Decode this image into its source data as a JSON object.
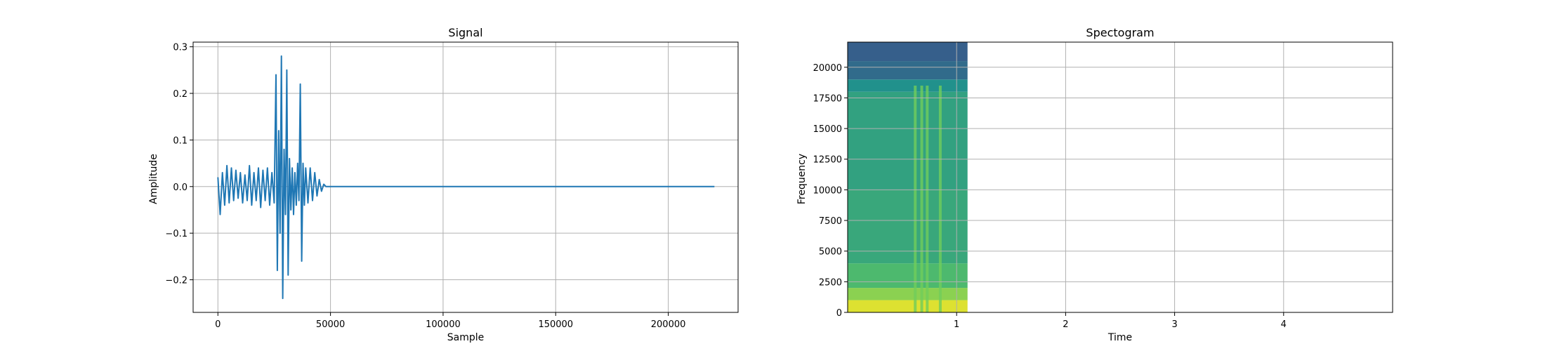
{
  "chart_data": [
    {
      "type": "line",
      "title": "Signal",
      "xlabel": "Sample",
      "ylabel": "Amplitude",
      "xlim": [
        -11000,
        231000
      ],
      "ylim": [
        -0.27,
        0.31
      ],
      "xticks": [
        0,
        50000,
        100000,
        150000,
        200000
      ],
      "xtick_labels": [
        "0",
        "50000",
        "100000",
        "150000",
        "200000"
      ],
      "yticks": [
        -0.2,
        -0.1,
        0.0,
        0.1,
        0.2,
        0.3
      ],
      "ytick_labels": [
        "−0.2",
        "−0.1",
        "0.0",
        "0.1",
        "0.2",
        "0.3"
      ],
      "grid": true,
      "series": [
        {
          "color": "#1f77b4",
          "x": [
            0,
            1000,
            2000,
            3000,
            4000,
            5000,
            6000,
            7000,
            8000,
            9000,
            10000,
            11000,
            12000,
            13000,
            14000,
            15000,
            16000,
            17000,
            18000,
            19000,
            20000,
            21000,
            22000,
            23000,
            24000,
            25000,
            25800,
            26400,
            27000,
            27600,
            28200,
            28800,
            29400,
            30000,
            30600,
            31200,
            31800,
            32400,
            33000,
            33600,
            34200,
            34800,
            35400,
            36000,
            36600,
            37200,
            37800,
            38400,
            39000,
            40000,
            41000,
            42000,
            43000,
            44000,
            45000,
            46000,
            47000,
            48000,
            100000,
            150000,
            220500
          ],
          "y": [
            0.02,
            -0.06,
            0.03,
            -0.04,
            0.045,
            -0.035,
            0.04,
            -0.03,
            0.035,
            -0.025,
            0.03,
            -0.035,
            0.025,
            -0.03,
            0.045,
            -0.04,
            0.03,
            -0.03,
            0.04,
            -0.045,
            0.035,
            -0.03,
            0.04,
            -0.04,
            0.03,
            -0.035,
            0.24,
            -0.18,
            0.12,
            -0.1,
            0.28,
            -0.24,
            0.08,
            -0.06,
            0.25,
            -0.19,
            0.06,
            -0.05,
            0.04,
            -0.06,
            0.03,
            -0.04,
            0.05,
            -0.03,
            0.22,
            -0.16,
            0.05,
            -0.04,
            0.04,
            -0.035,
            0.04,
            -0.03,
            0.03,
            -0.02,
            0.015,
            -0.01,
            0.005,
            0.0,
            0.0,
            0.0,
            0.0
          ]
        }
      ]
    },
    {
      "type": "heatmap",
      "title": "Spectogram",
      "xlabel": "Time",
      "ylabel": "Frequency",
      "xlim": [
        0,
        5.0
      ],
      "ylim": [
        0,
        22050
      ],
      "xticks": [
        1,
        2,
        3,
        4
      ],
      "xtick_labels": [
        "1",
        "2",
        "3",
        "4"
      ],
      "yticks": [
        0,
        2500,
        5000,
        7500,
        10000,
        12500,
        15000,
        17500,
        20000
      ],
      "ytick_labels": [
        "0",
        "2500",
        "5000",
        "7500",
        "10000",
        "12500",
        "15000",
        "17500",
        "20000"
      ],
      "grid": true,
      "data_extent": {
        "time": [
          0,
          1.1
        ],
        "frequency": [
          0,
          22050
        ]
      },
      "colormap": "viridis",
      "frequency_bands": [
        {
          "from": 0,
          "to": 1000,
          "level": 0.95
        },
        {
          "from": 1000,
          "to": 2000,
          "level": 0.82
        },
        {
          "from": 2000,
          "to": 4000,
          "level": 0.68
        },
        {
          "from": 4000,
          "to": 10000,
          "level": 0.6
        },
        {
          "from": 10000,
          "to": 18000,
          "level": 0.57
        },
        {
          "from": 18000,
          "to": 19000,
          "level": 0.5
        },
        {
          "from": 19000,
          "to": 20500,
          "level": 0.35
        },
        {
          "from": 20500,
          "to": 22050,
          "level": 0.3
        }
      ],
      "bright_time_streaks": [
        0.62,
        0.68,
        0.73,
        0.85
      ]
    }
  ]
}
